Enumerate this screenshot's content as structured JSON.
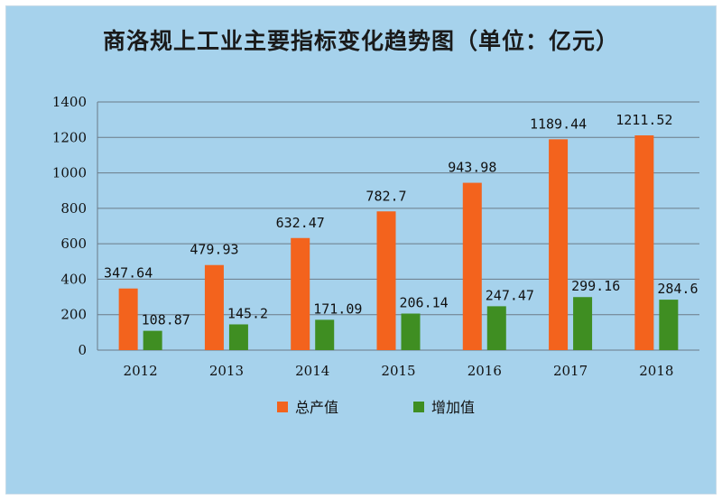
{
  "chart_data": {
    "type": "bar",
    "title": "商洛规上工业主要指标变化趋势图（单位：亿元）",
    "categories": [
      "2012",
      "2013",
      "2014",
      "2015",
      "2016",
      "2017",
      "2018"
    ],
    "series": [
      {
        "name": "总产值",
        "color": "#f3631d",
        "values": [
          347.64,
          479.93,
          632.47,
          782.7,
          943.98,
          1189.44,
          1211.52
        ],
        "labels": [
          "347.64",
          "479.93",
          "632.47",
          "782.7",
          "943.98",
          "1189.44",
          "1211.52"
        ]
      },
      {
        "name": "增加值",
        "color": "#3f8e22",
        "values": [
          108.87,
          145.2,
          171.09,
          206.14,
          247.47,
          299.16,
          284.6
        ],
        "labels": [
          "108.87",
          "145.2",
          "171.09",
          "206.14",
          "247.47",
          "299.16",
          "284.6"
        ]
      }
    ],
    "ylim": [
      0,
      1400
    ],
    "yticks": [
      "0",
      "200",
      "400",
      "600",
      "800",
      "1000",
      "1200",
      "1400"
    ],
    "grid": true,
    "legend": "bottom"
  }
}
